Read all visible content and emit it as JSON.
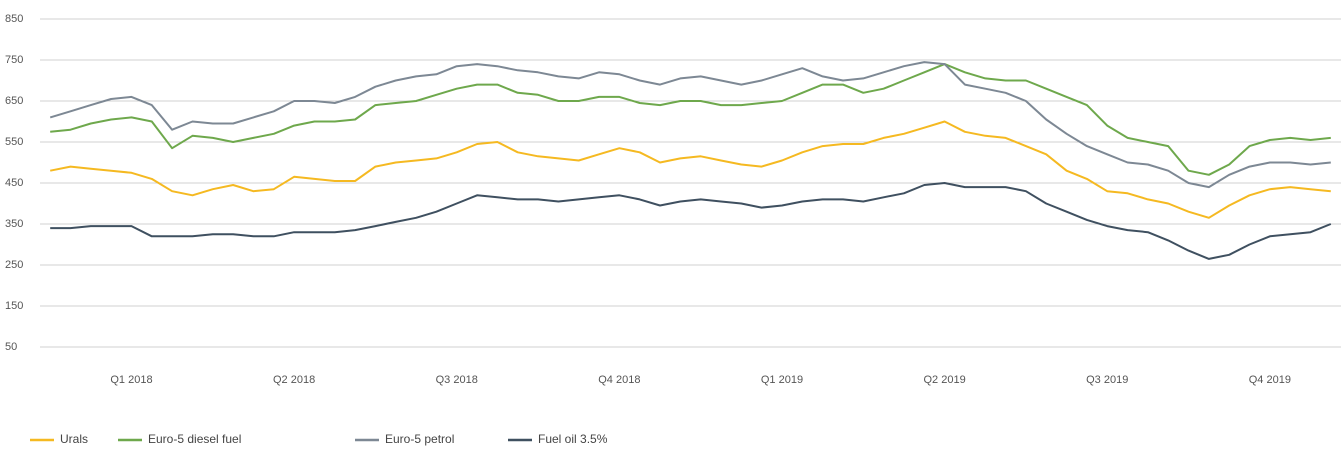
{
  "chart_data": {
    "type": "line",
    "categories": [
      null,
      null,
      null,
      null,
      "Q1 2018",
      null,
      null,
      null,
      null,
      null,
      null,
      null,
      "Q2 2018",
      null,
      null,
      null,
      null,
      null,
      null,
      null,
      "Q3 2018",
      null,
      null,
      null,
      null,
      null,
      null,
      null,
      "Q4 2018",
      null,
      null,
      null,
      null,
      null,
      null,
      null,
      "Q1 2019",
      null,
      null,
      null,
      null,
      null,
      null,
      null,
      "Q2 2019",
      null,
      null,
      null,
      null,
      null,
      null,
      null,
      "Q3 2019",
      null,
      null,
      null,
      null,
      null,
      null,
      null,
      "Q4 2019",
      null,
      null,
      null
    ],
    "series": [
      {
        "name": "Urals",
        "color": "#f5b921",
        "values": [
          480,
          490,
          485,
          480,
          475,
          460,
          430,
          420,
          435,
          445,
          430,
          435,
          465,
          460,
          455,
          455,
          490,
          500,
          505,
          510,
          525,
          545,
          550,
          525,
          515,
          510,
          505,
          520,
          535,
          525,
          500,
          510,
          515,
          505,
          495,
          490,
          505,
          525,
          540,
          545,
          545,
          560,
          570,
          585,
          600,
          575,
          565,
          560,
          540,
          520,
          480,
          460,
          430,
          425,
          410,
          400,
          380,
          365,
          395,
          420,
          435,
          440,
          435,
          430
        ]
      },
      {
        "name": "Euro-5 diesel fuel",
        "color": "#6ea84c",
        "values": [
          575,
          580,
          595,
          605,
          610,
          600,
          535,
          565,
          560,
          550,
          560,
          570,
          590,
          600,
          600,
          605,
          640,
          645,
          650,
          665,
          680,
          690,
          690,
          670,
          665,
          650,
          650,
          660,
          660,
          645,
          640,
          650,
          650,
          640,
          640,
          645,
          650,
          670,
          690,
          690,
          670,
          680,
          700,
          720,
          740,
          720,
          705,
          700,
          700,
          680,
          660,
          640,
          590,
          560,
          550,
          540,
          480,
          470,
          495,
          540,
          555,
          560,
          555,
          560
        ]
      },
      {
        "name": "Euro-5 petrol",
        "color": "#7d8894",
        "values": [
          610,
          625,
          640,
          655,
          660,
          640,
          580,
          600,
          595,
          595,
          610,
          625,
          650,
          650,
          645,
          660,
          685,
          700,
          710,
          715,
          735,
          740,
          735,
          725,
          720,
          710,
          705,
          720,
          715,
          700,
          690,
          705,
          710,
          700,
          690,
          700,
          715,
          730,
          710,
          700,
          705,
          720,
          735,
          745,
          740,
          690,
          680,
          670,
          650,
          605,
          570,
          540,
          520,
          500,
          495,
          480,
          450,
          440,
          470,
          490,
          500,
          500,
          495,
          500
        ]
      },
      {
        "name": "Fuel oil 3.5%",
        "color": "#3f5060",
        "values": [
          340,
          340,
          345,
          345,
          345,
          320,
          320,
          320,
          325,
          325,
          320,
          320,
          330,
          330,
          330,
          335,
          345,
          355,
          365,
          380,
          400,
          420,
          415,
          410,
          410,
          405,
          410,
          415,
          420,
          410,
          395,
          405,
          410,
          405,
          400,
          390,
          395,
          405,
          410,
          410,
          405,
          415,
          425,
          445,
          450,
          440,
          440,
          440,
          430,
          400,
          380,
          360,
          345,
          335,
          330,
          310,
          285,
          265,
          275,
          300,
          320,
          325,
          330,
          350
        ]
      }
    ],
    "ylim": [
      50,
      850
    ],
    "yticks": [
      50,
      150,
      250,
      350,
      450,
      550,
      650,
      750,
      850
    ],
    "grid": true
  }
}
